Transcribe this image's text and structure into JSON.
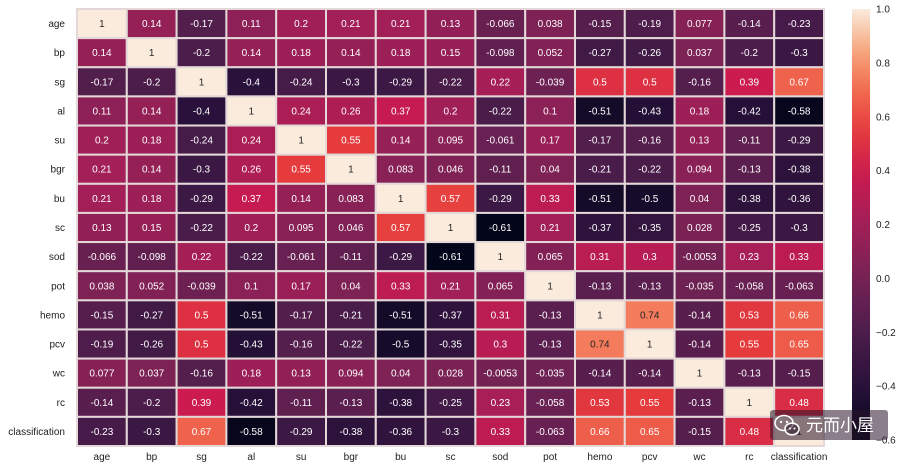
{
  "chart_data": {
    "type": "heatmap",
    "title": "",
    "xlabel": "",
    "ylabel": "",
    "variables": [
      "age",
      "bp",
      "sg",
      "al",
      "su",
      "bgr",
      "bu",
      "sc",
      "sod",
      "pot",
      "hemo",
      "pcv",
      "wc",
      "rc",
      "classification"
    ],
    "values": [
      [
        1,
        0.14,
        -0.17,
        0.11,
        0.2,
        0.21,
        0.21,
        0.13,
        -0.066,
        0.038,
        -0.15,
        -0.19,
        0.077,
        -0.14,
        -0.23
      ],
      [
        0.14,
        1,
        -0.2,
        0.14,
        0.18,
        0.14,
        0.18,
        0.15,
        -0.098,
        0.052,
        -0.27,
        -0.26,
        0.037,
        -0.2,
        -0.3
      ],
      [
        -0.17,
        -0.2,
        1,
        -0.4,
        -0.24,
        -0.3,
        -0.29,
        -0.22,
        0.22,
        -0.039,
        0.5,
        0.5,
        -0.16,
        0.39,
        0.67
      ],
      [
        0.11,
        0.14,
        -0.4,
        1,
        0.24,
        0.26,
        0.37,
        0.2,
        -0.22,
        0.1,
        -0.51,
        -0.43,
        0.18,
        -0.42,
        -0.58
      ],
      [
        0.2,
        0.18,
        -0.24,
        0.24,
        1,
        0.55,
        0.14,
        0.095,
        -0.061,
        0.17,
        -0.17,
        -0.16,
        0.13,
        -0.11,
        -0.29
      ],
      [
        0.21,
        0.14,
        -0.3,
        0.26,
        0.55,
        1,
        0.083,
        0.046,
        -0.11,
        0.04,
        -0.21,
        -0.22,
        0.094,
        -0.13,
        -0.38
      ],
      [
        0.21,
        0.18,
        -0.29,
        0.37,
        0.14,
        0.083,
        1,
        0.57,
        -0.29,
        0.33,
        -0.51,
        -0.5,
        0.04,
        -0.38,
        -0.36
      ],
      [
        0.13,
        0.15,
        -0.22,
        0.2,
        0.095,
        0.046,
        0.57,
        1,
        -0.61,
        0.21,
        -0.37,
        -0.35,
        0.028,
        -0.25,
        -0.3
      ],
      [
        -0.066,
        -0.098,
        0.22,
        -0.22,
        -0.061,
        -0.11,
        -0.29,
        -0.61,
        1,
        0.065,
        0.31,
        0.3,
        -0.0053,
        0.23,
        0.33
      ],
      [
        0.038,
        0.052,
        -0.039,
        0.1,
        0.17,
        0.04,
        0.33,
        0.21,
        0.065,
        1,
        -0.13,
        -0.13,
        -0.035,
        -0.058,
        -0.063
      ],
      [
        -0.15,
        -0.27,
        0.5,
        -0.51,
        -0.17,
        -0.21,
        -0.51,
        -0.37,
        0.31,
        -0.13,
        1,
        0.74,
        -0.14,
        0.53,
        0.66
      ],
      [
        -0.19,
        -0.26,
        0.5,
        -0.43,
        -0.16,
        -0.22,
        -0.5,
        -0.35,
        0.3,
        -0.13,
        0.74,
        1,
        -0.14,
        0.55,
        0.65
      ],
      [
        0.077,
        0.037,
        -0.16,
        0.18,
        0.13,
        0.094,
        0.04,
        0.028,
        -0.0053,
        -0.035,
        -0.14,
        -0.14,
        1,
        -0.13,
        -0.15
      ],
      [
        -0.14,
        -0.2,
        0.39,
        -0.42,
        -0.11,
        -0.13,
        -0.38,
        -0.25,
        0.23,
        -0.058,
        0.53,
        0.55,
        -0.13,
        1,
        0.48
      ],
      [
        -0.23,
        -0.3,
        0.67,
        -0.58,
        -0.29,
        -0.38,
        -0.36,
        -0.3,
        0.33,
        -0.063,
        0.66,
        0.65,
        -0.15,
        0.48,
        1
      ]
    ],
    "vmin": -0.6,
    "vmax": 1.0,
    "colormap": "rocket",
    "colorbar_ticks": [
      1.0,
      0.8,
      0.6,
      0.4,
      0.2,
      0.0,
      -0.2,
      -0.4,
      -0.6
    ],
    "colorbar_labels": [
      "1.0",
      "0.8",
      "0.6",
      "0.4",
      "0.2",
      "0.0",
      "−0.2",
      "−0.4",
      "−0.6"
    ],
    "annotations": true,
    "grid_line_color": "#e3d7d7",
    "legend": "colorbar-right"
  },
  "watermark": {
    "text": "元而小屋",
    "icon": "wechat-icon"
  }
}
